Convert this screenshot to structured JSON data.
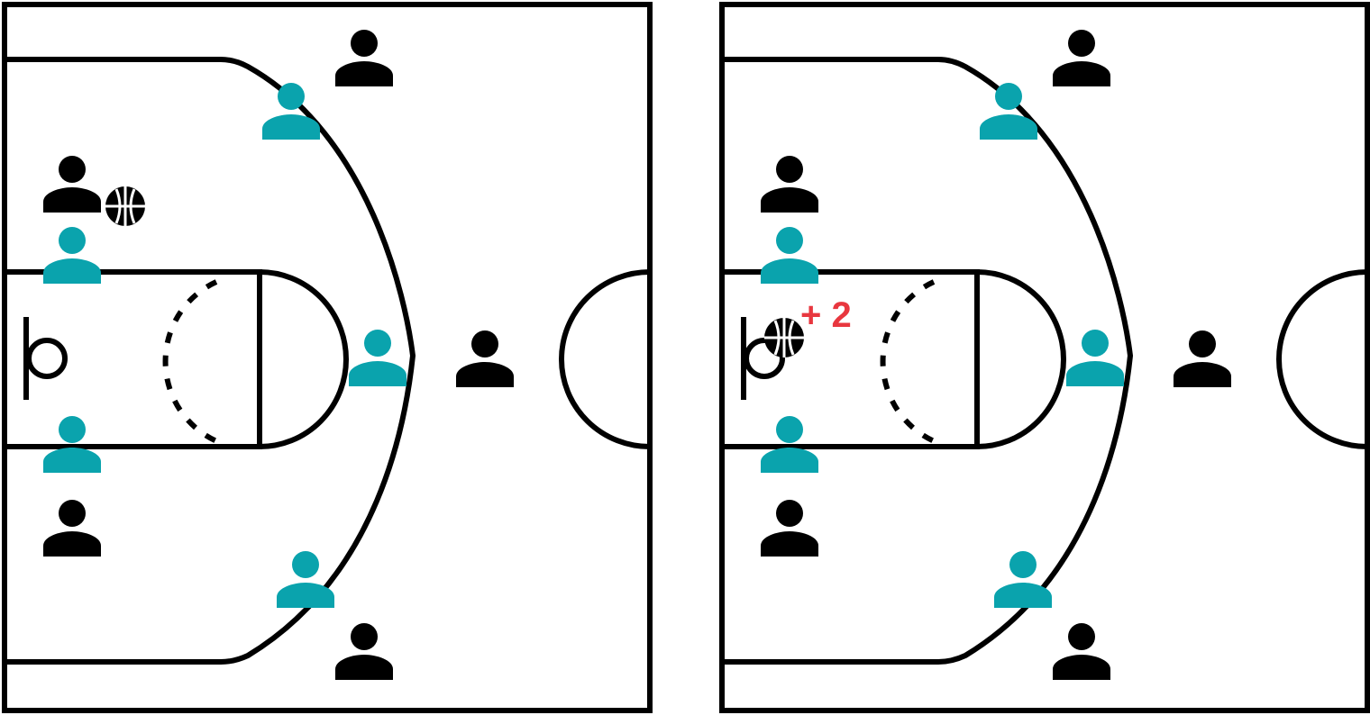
{
  "colors": {
    "court_line": "#000000",
    "offense_player": "#000000",
    "defense_player": "#0aa3ad",
    "score_text": "#e8373f",
    "background": "#ffffff"
  },
  "icons": {
    "offense": "person-icon",
    "defense": "person-icon",
    "ball": "basketball-icon"
  },
  "panels": [
    {
      "id": "before",
      "ball_holder": "left-wing",
      "score_label": ""
    },
    {
      "id": "after",
      "ball_holder": "rim",
      "score_label": "+ 2"
    }
  ]
}
